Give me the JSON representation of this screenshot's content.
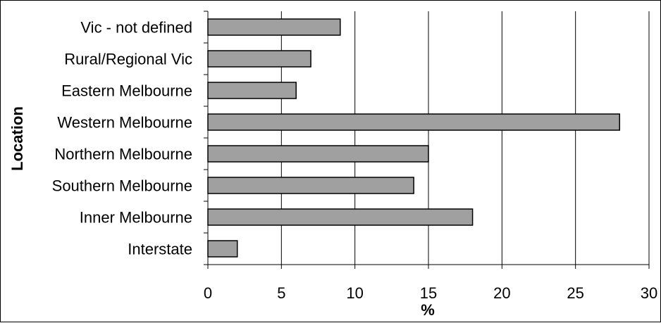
{
  "chart_data": {
    "type": "bar",
    "orientation": "horizontal",
    "categories": [
      "Vic - not defined",
      "Rural/Regional Vic",
      "Eastern Melbourne",
      "Western Melbourne",
      "Northern Melbourne",
      "Southern Melbourne",
      "Inner Melbourne",
      "Interstate"
    ],
    "values": [
      9,
      7,
      6,
      28,
      15,
      14,
      18,
      2
    ],
    "xlabel": "%",
    "ylabel": "Location",
    "xlim": [
      0,
      30
    ],
    "xticks": [
      "0",
      "5",
      "10",
      "15",
      "20",
      "25",
      "30"
    ],
    "grid": "vertical",
    "bar_color": "#a0a0a0",
    "edge_color": "#000000"
  }
}
